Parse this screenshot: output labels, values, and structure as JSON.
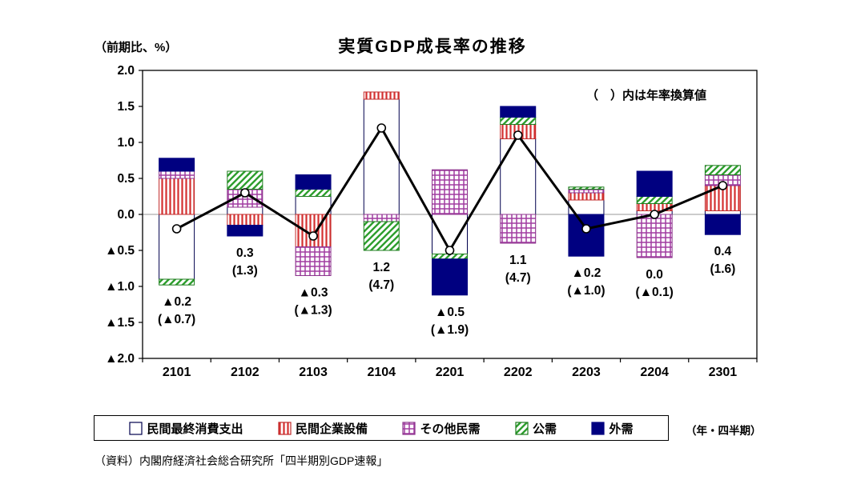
{
  "title": "実質GDP成長率の推移",
  "y_axis_unit": "（前期比、%）",
  "annotation": "（　）内は年率換算値",
  "x_axis_unit": "（年・四半期）",
  "source": "（資料）内閣府経済社会総合研究所「四半期別GDP速報」",
  "colors": {
    "navy": "#000080",
    "red": "#d43030",
    "purple": "#a03ca0",
    "green": "#2e9e2e",
    "line": "#000000"
  },
  "chart_data": {
    "type": "bar",
    "subtype": "stacked-bar-with-line-overlay",
    "title": "実質GDP成長率の推移",
    "ylabel": "（前期比、%）",
    "xlabel": "（年・四半期）",
    "ylim": [
      -2.0,
      2.0
    ],
    "ytick_step": 0.5,
    "yticks": [
      "2.0",
      "1.5",
      "1.0",
      "0.5",
      "0.0",
      "▲0.5",
      "▲1.0",
      "▲1.5",
      "▲2.0"
    ],
    "grid": "zero-line-only",
    "legend_position": "bottom",
    "categories": [
      "2101",
      "2102",
      "2103",
      "2104",
      "2201",
      "2202",
      "2203",
      "2204",
      "2301"
    ],
    "series": [
      {
        "name": "民間最終消費支出",
        "pattern": "white",
        "values": [
          -0.9,
          0.1,
          0.25,
          1.6,
          -0.55,
          1.05,
          0.2,
          0.05,
          0.05
        ]
      },
      {
        "name": "民間企業設備",
        "pattern": "red-vertical-stripes",
        "values": [
          0.5,
          -0.15,
          -0.45,
          0.1,
          0.0,
          0.2,
          0.1,
          0.1,
          0.35
        ]
      },
      {
        "name": "その他民需",
        "pattern": "purple-grid",
        "values": [
          0.1,
          0.25,
          -0.4,
          -0.1,
          0.62,
          -0.4,
          0.05,
          -0.6,
          0.15
        ]
      },
      {
        "name": "公需",
        "pattern": "green-diagonal-stripes",
        "values": [
          -0.08,
          0.25,
          0.1,
          -0.4,
          -0.07,
          0.1,
          0.03,
          0.1,
          0.13
        ]
      },
      {
        "name": "外需",
        "pattern": "solid-navy",
        "values": [
          0.18,
          -0.15,
          0.2,
          0.0,
          -0.5,
          0.15,
          -0.58,
          0.35,
          -0.28
        ]
      }
    ],
    "line_series": {
      "name": "実質GDP成長率（前期比）",
      "values": [
        -0.2,
        0.3,
        -0.3,
        1.2,
        -0.5,
        1.1,
        -0.2,
        0.0,
        0.4
      ]
    },
    "annualized_values": [
      -0.7,
      1.3,
      -1.3,
      4.7,
      -1.9,
      4.7,
      -1.0,
      -0.1,
      1.6
    ],
    "data_labels": [
      {
        "qoq": "▲0.2",
        "ann": "(▲0.7)"
      },
      {
        "qoq": "0.3",
        "ann": "(1.3)"
      },
      {
        "qoq": "▲0.3",
        "ann": "(▲1.3)"
      },
      {
        "qoq": "1.2",
        "ann": "(4.7)"
      },
      {
        "qoq": "▲0.5",
        "ann": "(▲1.9)"
      },
      {
        "qoq": "1.1",
        "ann": "(4.7)"
      },
      {
        "qoq": "▲0.2",
        "ann": "(▲1.0)"
      },
      {
        "qoq": "0.0",
        "ann": "(▲0.1)"
      },
      {
        "qoq": "0.4",
        "ann": "(1.6)"
      }
    ]
  }
}
